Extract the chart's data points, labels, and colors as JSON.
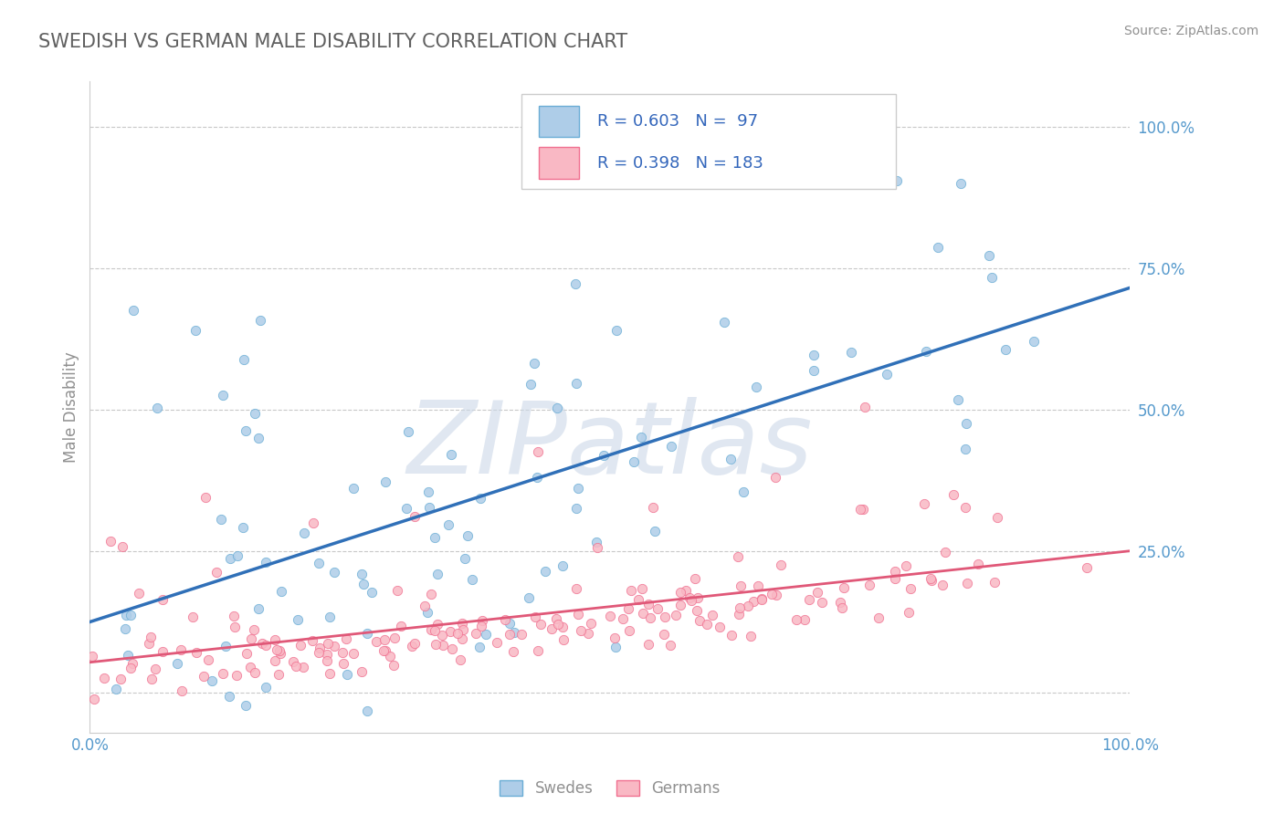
{
  "title": "SWEDISH VS GERMAN MALE DISABILITY CORRELATION CHART",
  "source_text": "Source: ZipAtlas.com",
  "ylabel": "Male Disability",
  "watermark": "ZIPatlas",
  "swedes_R": 0.603,
  "swedes_N": 97,
  "germans_R": 0.398,
  "germans_N": 183,
  "swedes_fill": "#aecde8",
  "swedes_edge": "#6aadd5",
  "germans_fill": "#f9b8c4",
  "germans_edge": "#f07090",
  "trend_blue": "#3070b8",
  "trend_pink": "#e05878",
  "background_color": "#ffffff",
  "grid_color": "#c8c8c8",
  "title_color": "#606060",
  "axis_label_color": "#909090",
  "tick_label_color": "#5599cc",
  "legend_text_color": "#3366bb",
  "watermark_color": "#ccd8e8",
  "figsize": [
    14.06,
    8.92
  ],
  "dpi": 100
}
